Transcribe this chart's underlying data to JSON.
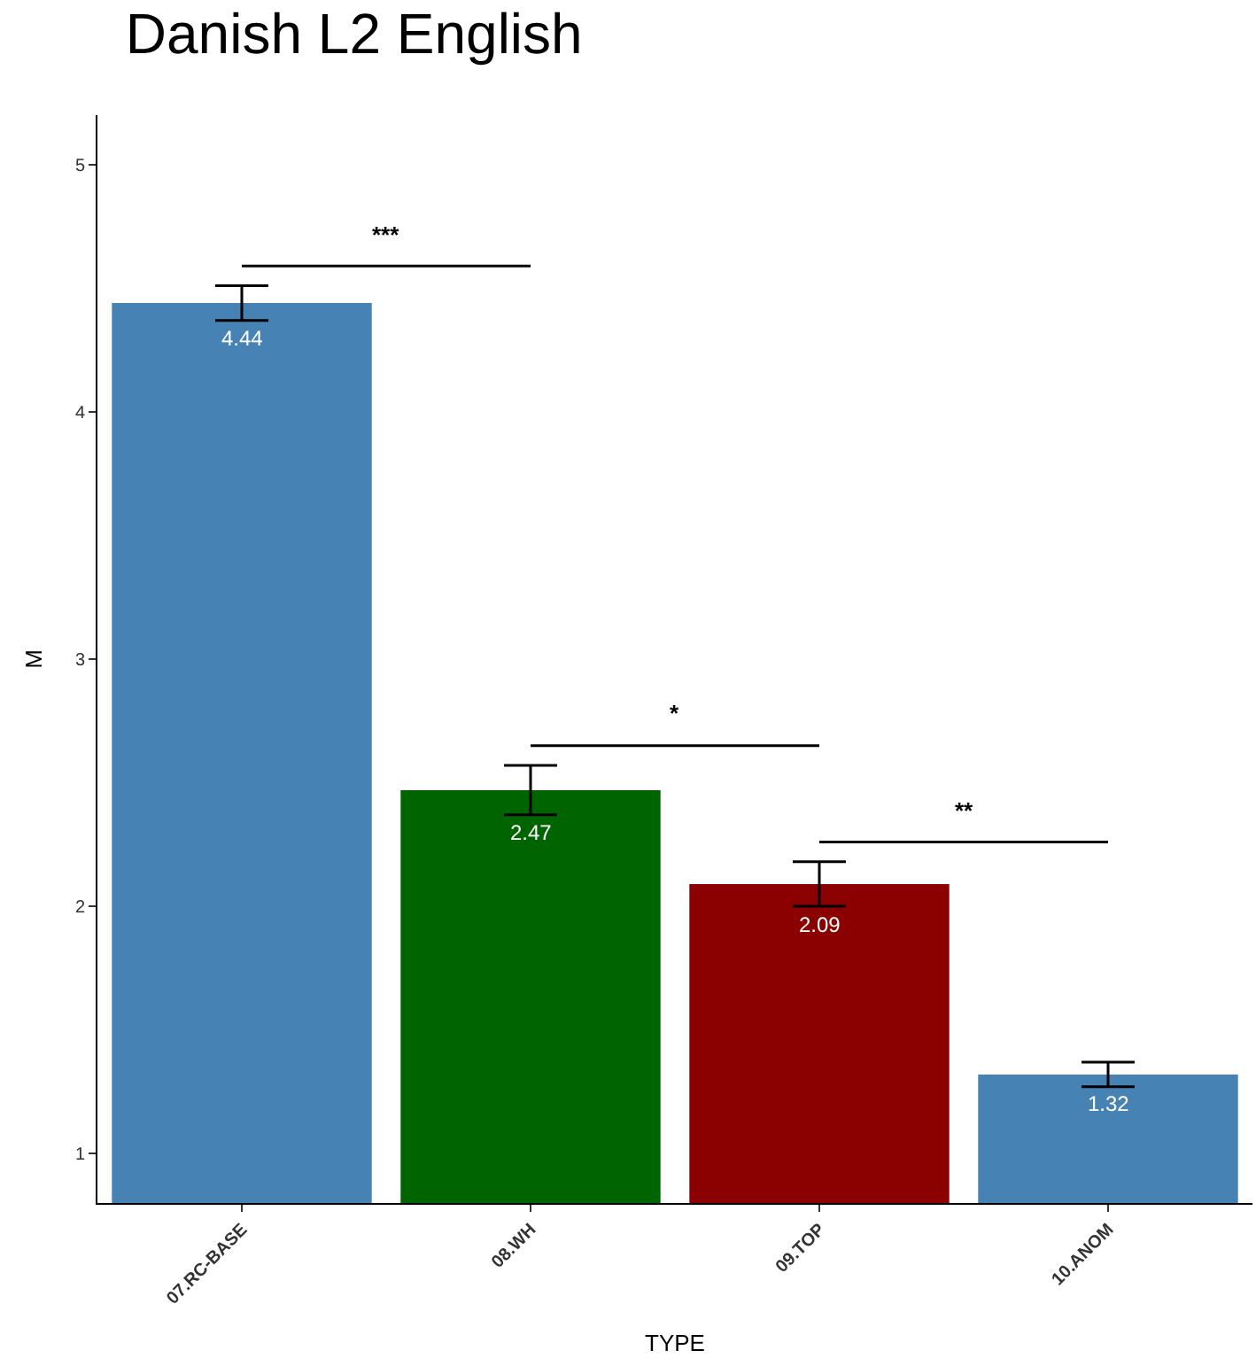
{
  "chart_data": {
    "type": "bar",
    "title": "Danish L2 English",
    "xlabel": "TYPE",
    "ylabel": "M",
    "categories": [
      "07.RC-BASE",
      "08.WH",
      "09.TOP",
      "10.ANOM"
    ],
    "values": [
      4.44,
      2.47,
      2.09,
      1.32
    ],
    "colors": [
      "#4682b4",
      "#006400",
      "#8b0000",
      "#4682b4"
    ],
    "errors": [
      0.07,
      0.1,
      0.09,
      0.05
    ],
    "data_labels": true,
    "ylim": [
      0.8,
      5.2
    ],
    "yticks": [
      1,
      2,
      3,
      4,
      5
    ],
    "grid": false,
    "legend": false,
    "annotations": [
      "***",
      "*",
      "**"
    ]
  }
}
